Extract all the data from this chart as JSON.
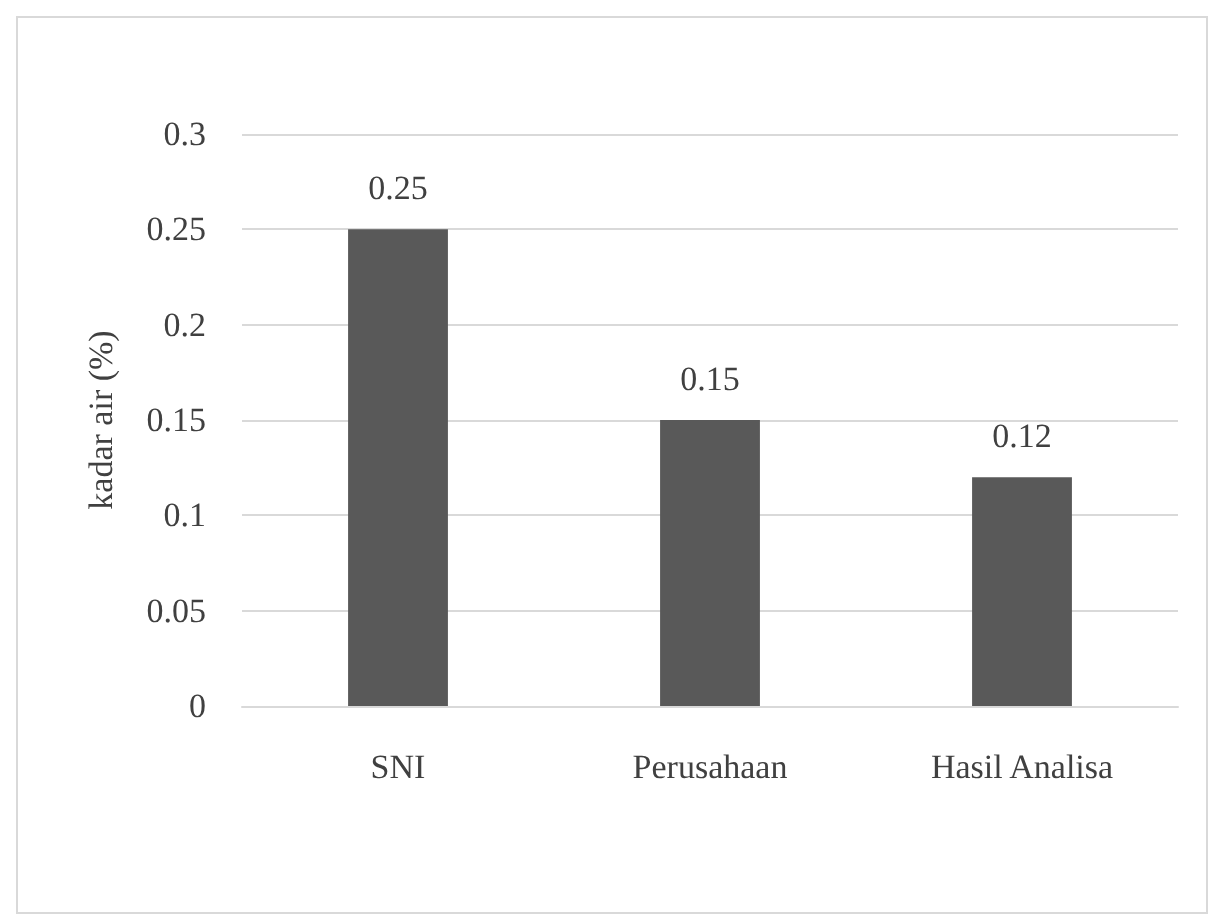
{
  "chart_data": {
    "type": "bar",
    "ylabel": "kadar air (%)",
    "categories": [
      "SNI",
      "Perusahaan",
      "Hasil Analisa"
    ],
    "values": [
      0.25,
      0.15,
      0.12
    ],
    "color": "#595959",
    "ylim": [
      0,
      0.3
    ],
    "yticks": [
      0,
      0.05,
      0.1,
      0.15,
      0.2,
      0.25,
      0.3
    ],
    "grid": "y",
    "data_labels": true
  }
}
